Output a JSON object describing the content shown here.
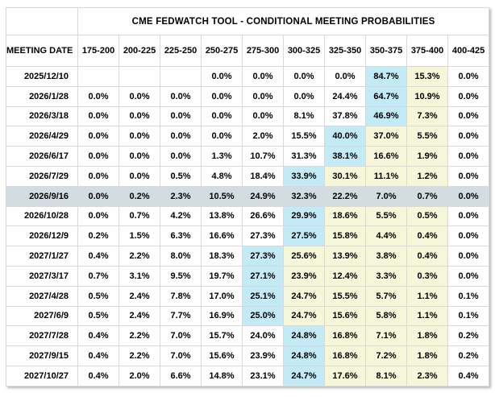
{
  "table": {
    "title": "CME FEDWATCH TOOL - CONDITIONAL MEETING PROBABILITIES",
    "date_header": "MEETING DATE",
    "columns": [
      "175-200",
      "200-225",
      "225-250",
      "250-275",
      "275-300",
      "300-325",
      "325-350",
      "350-375",
      "375-400",
      "400-425"
    ],
    "rows": [
      {
        "date": "2025/12/10",
        "selected": false,
        "values": [
          "",
          "",
          "",
          "0.0%",
          "0.0%",
          "0.0%",
          "0.0%",
          "84.7%",
          "15.3%",
          "0.0%"
        ],
        "highlights": [
          "",
          "",
          "",
          "",
          "",
          "",
          "",
          "blue",
          "yellow",
          ""
        ]
      },
      {
        "date": "2026/1/28",
        "selected": false,
        "values": [
          "0.0%",
          "0.0%",
          "0.0%",
          "0.0%",
          "0.0%",
          "0.0%",
          "24.4%",
          "64.7%",
          "10.9%",
          "0.0%"
        ],
        "highlights": [
          "",
          "",
          "",
          "",
          "",
          "",
          "",
          "blue",
          "yellow",
          ""
        ]
      },
      {
        "date": "2026/3/18",
        "selected": false,
        "values": [
          "0.0%",
          "0.0%",
          "0.0%",
          "0.0%",
          "0.0%",
          "8.1%",
          "37.8%",
          "46.9%",
          "7.3%",
          "0.0%"
        ],
        "highlights": [
          "",
          "",
          "",
          "",
          "",
          "",
          "",
          "blue",
          "yellow",
          ""
        ]
      },
      {
        "date": "2026/4/29",
        "selected": false,
        "values": [
          "0.0%",
          "0.0%",
          "0.0%",
          "0.0%",
          "2.0%",
          "15.5%",
          "40.0%",
          "37.0%",
          "5.5%",
          "0.0%"
        ],
        "highlights": [
          "",
          "",
          "",
          "",
          "",
          "",
          "blue",
          "yellow",
          "yellow",
          ""
        ]
      },
      {
        "date": "2026/6/17",
        "selected": false,
        "values": [
          "0.0%",
          "0.0%",
          "0.0%",
          "1.3%",
          "10.7%",
          "31.3%",
          "38.1%",
          "16.6%",
          "1.9%",
          "0.0%"
        ],
        "highlights": [
          "",
          "",
          "",
          "",
          "",
          "",
          "blue",
          "yellow",
          "yellow",
          ""
        ]
      },
      {
        "date": "2026/7/29",
        "selected": false,
        "values": [
          "0.0%",
          "0.0%",
          "0.5%",
          "4.8%",
          "18.4%",
          "33.9%",
          "30.1%",
          "11.1%",
          "1.2%",
          "0.0%"
        ],
        "highlights": [
          "",
          "",
          "",
          "",
          "",
          "blue",
          "yellow",
          "yellow",
          "yellow",
          ""
        ]
      },
      {
        "date": "2026/9/16",
        "selected": true,
        "values": [
          "0.0%",
          "0.2%",
          "2.3%",
          "10.5%",
          "24.9%",
          "32.3%",
          "22.2%",
          "7.0%",
          "0.7%",
          "0.0%"
        ],
        "highlights": [
          "",
          "",
          "",
          "",
          "",
          "",
          "",
          "",
          "",
          ""
        ]
      },
      {
        "date": "2026/10/28",
        "selected": false,
        "values": [
          "0.0%",
          "0.7%",
          "4.2%",
          "13.8%",
          "26.6%",
          "29.9%",
          "18.6%",
          "5.5%",
          "0.5%",
          "0.0%"
        ],
        "highlights": [
          "",
          "",
          "",
          "",
          "",
          "blue",
          "yellow",
          "yellow",
          "yellow",
          ""
        ]
      },
      {
        "date": "2026/12/9",
        "selected": false,
        "values": [
          "0.2%",
          "1.5%",
          "6.3%",
          "16.6%",
          "27.3%",
          "27.5%",
          "15.8%",
          "4.4%",
          "0.4%",
          "0.0%"
        ],
        "highlights": [
          "",
          "",
          "",
          "",
          "",
          "blue",
          "yellow",
          "yellow",
          "yellow",
          ""
        ]
      },
      {
        "date": "2027/1/27",
        "selected": false,
        "values": [
          "0.4%",
          "2.2%",
          "8.0%",
          "18.3%",
          "27.3%",
          "25.6%",
          "13.9%",
          "3.8%",
          "0.4%",
          "0.0%"
        ],
        "highlights": [
          "",
          "",
          "",
          "",
          "blue",
          "yellow",
          "yellow",
          "yellow",
          "yellow",
          ""
        ]
      },
      {
        "date": "2027/3/17",
        "selected": false,
        "values": [
          "0.7%",
          "3.1%",
          "9.5%",
          "19.7%",
          "27.1%",
          "23.9%",
          "12.4%",
          "3.3%",
          "0.3%",
          "0.0%"
        ],
        "highlights": [
          "",
          "",
          "",
          "",
          "blue",
          "yellow",
          "yellow",
          "yellow",
          "yellow",
          ""
        ]
      },
      {
        "date": "2027/4/28",
        "selected": false,
        "values": [
          "0.5%",
          "2.4%",
          "7.8%",
          "17.0%",
          "25.1%",
          "24.7%",
          "15.5%",
          "5.7%",
          "1.1%",
          "0.1%"
        ],
        "highlights": [
          "",
          "",
          "",
          "",
          "blue",
          "yellow",
          "yellow",
          "yellow",
          "yellow",
          ""
        ]
      },
      {
        "date": "2027/6/9",
        "selected": false,
        "values": [
          "0.5%",
          "2.4%",
          "7.7%",
          "16.9%",
          "25.0%",
          "24.7%",
          "15.6%",
          "5.8%",
          "1.1%",
          "0.1%"
        ],
        "highlights": [
          "",
          "",
          "",
          "",
          "blue",
          "yellow",
          "yellow",
          "yellow",
          "yellow",
          ""
        ]
      },
      {
        "date": "2027/7/28",
        "selected": false,
        "values": [
          "0.4%",
          "2.2%",
          "7.0%",
          "15.7%",
          "24.0%",
          "24.8%",
          "16.8%",
          "7.1%",
          "1.8%",
          "0.2%"
        ],
        "highlights": [
          "",
          "",
          "",
          "",
          "",
          "blue",
          "yellow",
          "yellow",
          "yellow",
          ""
        ]
      },
      {
        "date": "2027/9/15",
        "selected": false,
        "values": [
          "0.4%",
          "2.2%",
          "7.0%",
          "15.6%",
          "23.9%",
          "24.8%",
          "16.8%",
          "7.2%",
          "1.8%",
          "0.2%"
        ],
        "highlights": [
          "",
          "",
          "",
          "",
          "",
          "blue",
          "yellow",
          "yellow",
          "yellow",
          ""
        ]
      },
      {
        "date": "2027/10/27",
        "selected": false,
        "values": [
          "0.4%",
          "2.0%",
          "6.6%",
          "14.8%",
          "23.1%",
          "24.7%",
          "17.6%",
          "8.1%",
          "2.3%",
          "0.4%"
        ],
        "highlights": [
          "",
          "",
          "",
          "",
          "",
          "blue",
          "yellow",
          "yellow",
          "yellow",
          ""
        ]
      }
    ]
  },
  "colors": {
    "blue": "#c2eaf7",
    "yellow": "#f6f6d9",
    "selected": "#d3dce0",
    "border": "#d9d9d9"
  }
}
